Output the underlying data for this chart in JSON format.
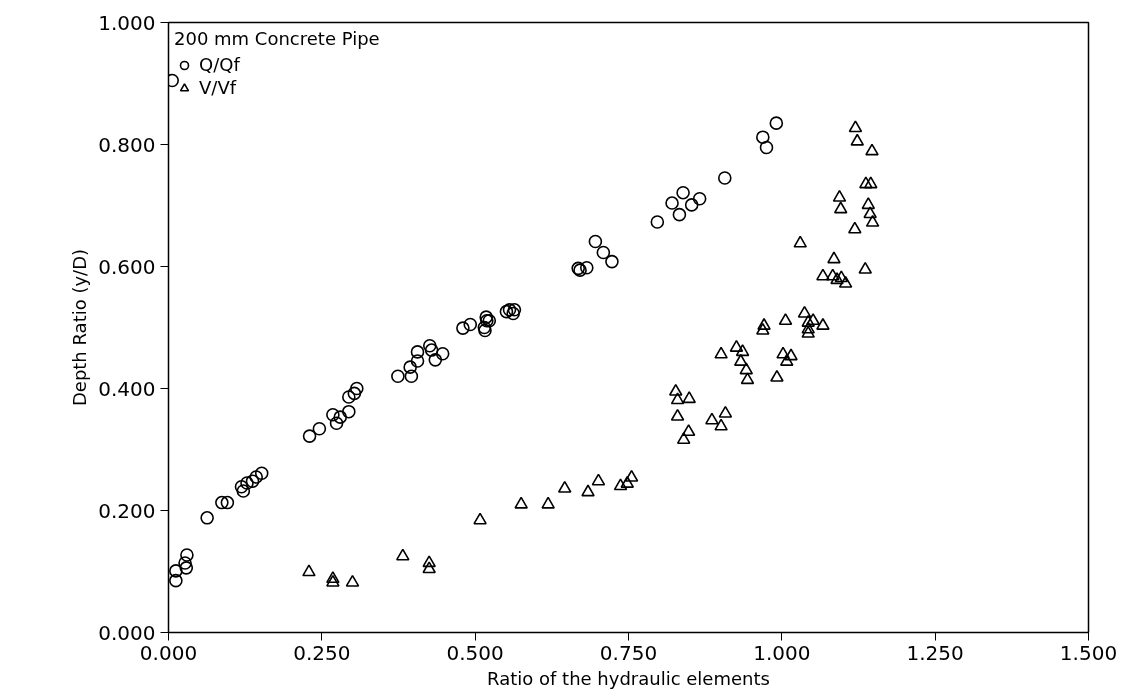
{
  "chart_data": {
    "type": "scatter",
    "xlabel": "Ratio of the hydraulic elements",
    "ylabel": "Depth Ratio (y/D)",
    "legend_title": "200 mm Concrete Pipe",
    "xlim": [
      0,
      1.5
    ],
    "ylim": [
      0,
      1
    ],
    "xticks": [
      {
        "value": 0,
        "label": "0.000"
      },
      {
        "value": 0.25,
        "label": "0.250"
      },
      {
        "value": 0.5,
        "label": "0.500"
      },
      {
        "value": 0.75,
        "label": "0.750"
      },
      {
        "value": 1,
        "label": "1.000"
      },
      {
        "value": 1.25,
        "label": "1.250"
      },
      {
        "value": 1.5,
        "label": "1.500"
      }
    ],
    "yticks": [
      {
        "value": 0,
        "label": "0.000"
      },
      {
        "value": 0.2,
        "label": "0.200"
      },
      {
        "value": 0.4,
        "label": "0.400"
      },
      {
        "value": 0.6,
        "label": "0.600"
      },
      {
        "value": 0.8,
        "label": "0.800"
      },
      {
        "value": 1,
        "label": "1.000"
      }
    ],
    "grid": false,
    "legend": "top left",
    "series": [
      {
        "name": "Q/Qf",
        "color": "#000000",
        "marker": "circle",
        "x": [
          0.006,
          0.012,
          0.012,
          0.027,
          0.03,
          0.029,
          0.063,
          0.087,
          0.096,
          0.119,
          0.128,
          0.137,
          0.143,
          0.152,
          0.122,
          0.23,
          0.246,
          0.268,
          0.274,
          0.28,
          0.294,
          0.294,
          0.303,
          0.307,
          0.374,
          0.396,
          0.394,
          0.406,
          0.406,
          0.426,
          0.429,
          0.435,
          0.447,
          0.48,
          0.492,
          0.516,
          0.519,
          0.515,
          0.523,
          0.518,
          0.551,
          0.562,
          0.564,
          0.556,
          0.671,
          0.682,
          0.668,
          0.696,
          0.709,
          0.723,
          0.797,
          0.821,
          0.839,
          0.833,
          0.853,
          0.866,
          0.907,
          0.969,
          0.975,
          0.991
        ],
        "values": [
          0.905,
          0.085,
          0.101,
          0.114,
          0.127,
          0.106,
          0.188,
          0.213,
          0.213,
          0.239,
          0.245,
          0.248,
          0.255,
          0.261,
          0.232,
          0.322,
          0.334,
          0.357,
          0.343,
          0.353,
          0.362,
          0.386,
          0.392,
          0.4,
          0.42,
          0.42,
          0.435,
          0.445,
          0.46,
          0.47,
          0.463,
          0.447,
          0.457,
          0.499,
          0.505,
          0.495,
          0.511,
          0.5,
          0.511,
          0.517,
          0.526,
          0.523,
          0.529,
          0.529,
          0.594,
          0.598,
          0.597,
          0.641,
          0.623,
          0.608,
          0.673,
          0.704,
          0.721,
          0.685,
          0.701,
          0.711,
          0.745,
          0.812,
          0.795,
          0.835
        ]
      },
      {
        "name": "V/Vf",
        "color": "#000000",
        "marker": "triangle",
        "x": [
          0.229,
          0.268,
          0.268,
          0.3,
          0.382,
          0.425,
          0.425,
          0.508,
          0.575,
          0.619,
          0.646,
          0.684,
          0.701,
          0.737,
          0.748,
          0.755,
          0.827,
          0.83,
          0.849,
          0.83,
          0.848,
          0.84,
          0.886,
          0.901,
          0.908,
          0.901,
          0.926,
          0.936,
          0.933,
          0.942,
          0.944,
          0.992,
          1.002,
          1.015,
          1.008,
          0.969,
          0.971,
          1.006,
          1.03,
          1.037,
          1.043,
          1.043,
          1.12,
          1.123,
          1.147,
          1.137,
          1.145,
          1.094,
          1.096,
          1.141,
          1.144,
          1.148,
          1.119,
          1.085,
          1.136,
          1.067,
          1.083,
          1.09,
          1.097,
          1.104,
          1.051,
          1.067,
          1.043
        ],
        "values": [
          0.099,
          0.088,
          0.082,
          0.082,
          0.125,
          0.114,
          0.104,
          0.184,
          0.21,
          0.21,
          0.236,
          0.23,
          0.248,
          0.24,
          0.244,
          0.254,
          0.395,
          0.381,
          0.383,
          0.354,
          0.329,
          0.316,
          0.348,
          0.338,
          0.359,
          0.456,
          0.467,
          0.46,
          0.444,
          0.43,
          0.414,
          0.418,
          0.456,
          0.453,
          0.444,
          0.495,
          0.503,
          0.511,
          0.638,
          0.523,
          0.497,
          0.508,
          0.827,
          0.805,
          0.789,
          0.735,
          0.735,
          0.713,
          0.694,
          0.701,
          0.686,
          0.672,
          0.661,
          0.612,
          0.595,
          0.584,
          0.584,
          0.578,
          0.581,
          0.572,
          0.511,
          0.503,
          0.49
        ]
      }
    ]
  }
}
